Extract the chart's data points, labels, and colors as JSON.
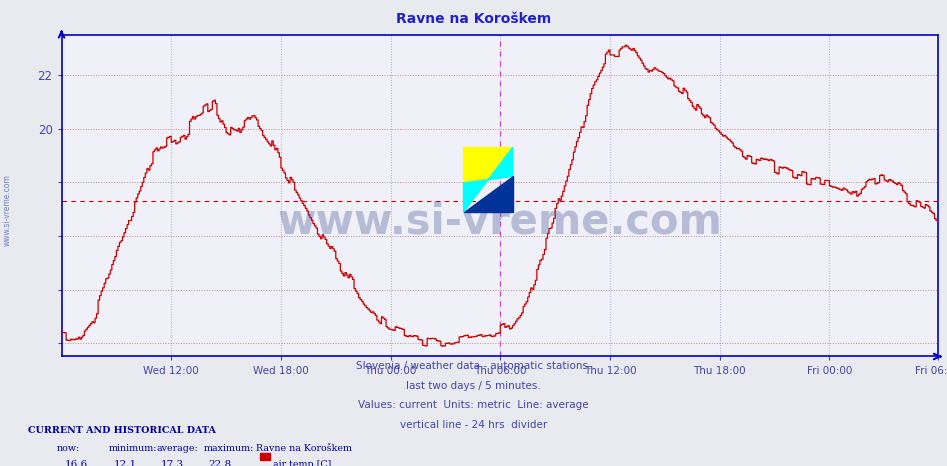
{
  "title": "Ravne na Koroškem",
  "title_color": "#2222cc",
  "bg_color": "#e8eaf0",
  "plot_bg_color": "#f0f0f8",
  "line_color": "#cc0000",
  "line_width": 1.0,
  "avg_line_color": "#cc0000",
  "avg_value": 17.3,
  "ylim_min": 11.5,
  "ylim_max": 23.5,
  "tick_color": "#4444aa",
  "grid_h_color": "#cc8888",
  "grid_v_color": "#aaaacc",
  "grid_style": ":",
  "axis_color": "#0000cc",
  "vline_color": "#cc44cc",
  "vline_positions": [
    288,
    575
  ],
  "n_points": 576,
  "footer_text1": "Slovenia / weather data - automatic stations.",
  "footer_text2": "last two days / 5 minutes.",
  "footer_text3": "Values: current  Units: metric  Line: average",
  "footer_text4": "vertical line - 24 hrs  divider",
  "footer_color": "#4444aa",
  "bottom_color": "#0000aa",
  "watermark": "www.si-vreme.com",
  "watermark_color": "#334488",
  "xtick_labels": [
    "Wed 12:00",
    "Wed 18:00",
    "Thu 00:00",
    "Thu 06:00",
    "Thu 12:00",
    "Thu 18:00",
    "Fri 00:00",
    "Fri 06:00"
  ],
  "xtick_positions": [
    72,
    144,
    216,
    288,
    360,
    432,
    504,
    575
  ],
  "now_val": "16.6",
  "min_val": "12.1",
  "avg_val": "17.3",
  "max_val": "22.8"
}
